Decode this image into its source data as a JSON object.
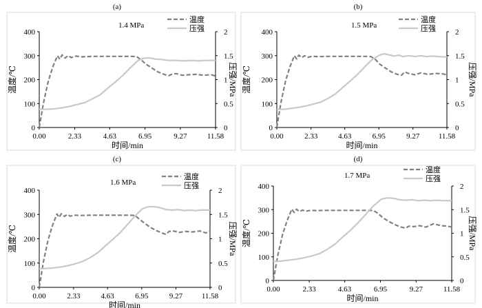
{
  "panel_labels": [
    "(a)",
    "(b)",
    "(c)",
    "(d)"
  ],
  "chart_data": [
    {
      "type": "line",
      "panel": "(a)",
      "annotation": "1.4 MPa",
      "xlabel": "时间/min",
      "ylabel": "温度/℃",
      "y2label": "压强/MPa",
      "x_ticks": [
        "0.00",
        "2.33",
        "4.63",
        "6.95",
        "9.27",
        "11.58"
      ],
      "xlim": [
        0,
        11.58
      ],
      "ylim": [
        0,
        400
      ],
      "y_ticks": [
        "0",
        "100",
        "200",
        "300",
        "400"
      ],
      "y2lim": [
        0,
        2
      ],
      "y2_ticks": [
        "0",
        "0.5",
        "1",
        "1.5",
        "2"
      ],
      "legend_position": "top-right",
      "grid": false,
      "series": [
        {
          "name": "温度",
          "axis": "left",
          "style": "dashed",
          "color": "#808080",
          "x": [
            0,
            0.3,
            0.6,
            0.9,
            1.2,
            1.35,
            1.5,
            1.7,
            1.9,
            2.1,
            2.4,
            2.8,
            3.5,
            4.5,
            5.5,
            6.1,
            6.4,
            6.7,
            7.0,
            7.4,
            7.8,
            8.2,
            8.5,
            8.7,
            9.0,
            9.4,
            9.8,
            10.3,
            10.8,
            11.3,
            11.58
          ],
          "values": [
            0,
            110,
            195,
            255,
            300,
            285,
            303,
            290,
            300,
            292,
            298,
            295,
            297,
            297,
            297,
            297,
            296,
            282,
            265,
            248,
            232,
            222,
            216,
            222,
            225,
            218,
            220,
            222,
            218,
            220,
            215
          ]
        },
        {
          "name": "压强",
          "axis": "right",
          "style": "solid",
          "color": "#c8c8c8",
          "x": [
            0,
            0.5,
            1,
            1.5,
            2,
            2.5,
            3,
            3.5,
            4,
            4.5,
            5,
            5.5,
            6,
            6.5,
            6.8,
            7.0,
            7.3,
            7.6,
            8.0,
            8.5,
            9.0,
            9.5,
            10,
            10.5,
            11,
            11.58
          ],
          "values": [
            0.38,
            0.38,
            0.39,
            0.41,
            0.44,
            0.48,
            0.52,
            0.6,
            0.68,
            0.82,
            0.95,
            1.09,
            1.25,
            1.4,
            1.44,
            1.45,
            1.45,
            1.43,
            1.42,
            1.4,
            1.4,
            1.39,
            1.4,
            1.39,
            1.4,
            1.4
          ]
        }
      ]
    },
    {
      "type": "line",
      "panel": "(b)",
      "annotation": "1.5 MPa",
      "xlabel": "时间/min",
      "ylabel": "温度/℃",
      "y2label": "压强/MPa",
      "x_ticks": [
        "0.00",
        "2.33",
        "4.63",
        "6.95",
        "9.27",
        "11.58"
      ],
      "xlim": [
        0,
        11.58
      ],
      "ylim": [
        0,
        400
      ],
      "y_ticks": [
        "0",
        "100",
        "200",
        "300",
        "400"
      ],
      "y2lim": [
        0,
        2
      ],
      "y2_ticks": [
        "0",
        "0.5",
        "1",
        "1.5",
        "2"
      ],
      "legend_position": "top-right",
      "grid": false,
      "series": [
        {
          "name": "温度",
          "axis": "left",
          "style": "dashed",
          "color": "#808080",
          "x": [
            0,
            0.3,
            0.6,
            0.9,
            1.2,
            1.35,
            1.5,
            1.7,
            1.9,
            2.1,
            2.4,
            2.8,
            3.5,
            4.5,
            5.5,
            6.1,
            6.4,
            6.7,
            7.0,
            7.4,
            7.8,
            8.2,
            8.5,
            8.7,
            9.0,
            9.4,
            9.8,
            10.3,
            10.8,
            11.3,
            11.58
          ],
          "values": [
            0,
            110,
            195,
            255,
            300,
            286,
            302,
            292,
            300,
            293,
            297,
            296,
            297,
            297,
            297,
            297,
            296,
            285,
            265,
            248,
            232,
            222,
            218,
            232,
            225,
            220,
            228,
            222,
            226,
            224,
            220
          ]
        },
        {
          "name": "压强",
          "axis": "right",
          "style": "solid",
          "color": "#c8c8c8",
          "x": [
            0,
            0.5,
            1,
            1.5,
            2,
            2.5,
            3,
            3.5,
            4,
            4.5,
            5,
            5.5,
            6,
            6.5,
            7.0,
            7.3,
            7.6,
            8.0,
            8.3,
            8.6,
            9.0,
            9.4,
            9.8,
            10.2,
            10.6,
            11.0,
            11.58
          ],
          "values": [
            0.38,
            0.38,
            0.4,
            0.42,
            0.45,
            0.49,
            0.53,
            0.61,
            0.7,
            0.84,
            0.97,
            1.11,
            1.27,
            1.42,
            1.51,
            1.54,
            1.52,
            1.49,
            1.51,
            1.48,
            1.5,
            1.48,
            1.5,
            1.48,
            1.49,
            1.48,
            1.47
          ]
        }
      ]
    },
    {
      "type": "line",
      "panel": "(c)",
      "annotation": "1.6 MPa",
      "xlabel": "时间/min",
      "ylabel": "温度/℃",
      "y2label": "压强/MPa",
      "x_ticks": [
        "0.00",
        "2.33",
        "4.63",
        "6.95",
        "9.27",
        "11.58"
      ],
      "xlim": [
        0,
        11.58
      ],
      "ylim": [
        0,
        400
      ],
      "y_ticks": [
        "0",
        "100",
        "200",
        "300",
        "400"
      ],
      "y2lim": [
        0,
        2
      ],
      "y2_ticks": [
        "0",
        "0.5",
        "1",
        "1.5",
        "2"
      ],
      "legend_position": "top-right",
      "grid": false,
      "series": [
        {
          "name": "温度",
          "axis": "left",
          "style": "dashed",
          "color": "#808080",
          "x": [
            0,
            0.3,
            0.6,
            0.9,
            1.2,
            1.35,
            1.5,
            1.7,
            1.9,
            2.1,
            2.4,
            2.8,
            3.5,
            4.5,
            5.5,
            6.1,
            6.5,
            6.8,
            7.1,
            7.5,
            7.9,
            8.3,
            8.6,
            8.8,
            9.1,
            9.5,
            9.9,
            10.4,
            10.9,
            11.3,
            11.58
          ],
          "values": [
            0,
            110,
            195,
            255,
            302,
            288,
            303,
            292,
            300,
            293,
            297,
            296,
            297,
            297,
            297,
            297,
            296,
            280,
            266,
            248,
            235,
            224,
            218,
            230,
            232,
            226,
            230,
            228,
            232,
            224,
            230
          ]
        },
        {
          "name": "压强",
          "axis": "right",
          "style": "solid",
          "color": "#c8c8c8",
          "x": [
            0,
            0.5,
            1,
            1.5,
            2,
            2.5,
            3,
            3.5,
            4,
            4.5,
            5,
            5.5,
            6,
            6.5,
            7.0,
            7.4,
            7.8,
            8.2,
            8.6,
            9.0,
            9.4,
            9.8,
            10.2,
            10.6,
            11.0,
            11.58
          ],
          "values": [
            0.38,
            0.39,
            0.4,
            0.42,
            0.45,
            0.49,
            0.54,
            0.62,
            0.72,
            0.86,
            0.99,
            1.13,
            1.3,
            1.47,
            1.62,
            1.66,
            1.66,
            1.64,
            1.6,
            1.59,
            1.6,
            1.58,
            1.59,
            1.58,
            1.59,
            1.59
          ]
        }
      ]
    },
    {
      "type": "line",
      "panel": "(d)",
      "annotation": "1.7 MPa",
      "xlabel": "时间/min",
      "ylabel": "温度/℃",
      "y2label": "压强/MPa",
      "x_ticks": [
        "0.00",
        "2.33",
        "4.63",
        "6.95",
        "9.27",
        "11.58"
      ],
      "xlim": [
        0,
        11.58
      ],
      "ylim": [
        0,
        400
      ],
      "y_ticks": [
        "0",
        "100",
        "200",
        "300",
        "400"
      ],
      "y2lim": [
        0,
        2
      ],
      "y2_ticks": [
        "0",
        "0.5",
        "1",
        "1.5",
        "2"
      ],
      "legend_position": "top-right",
      "grid": false,
      "series": [
        {
          "name": "温度",
          "axis": "left",
          "style": "dashed",
          "color": "#808080",
          "x": [
            0,
            0.3,
            0.6,
            0.9,
            1.2,
            1.35,
            1.5,
            1.7,
            1.9,
            2.1,
            2.4,
            2.8,
            3.5,
            4.5,
            5.5,
            6.1,
            6.5,
            6.8,
            7.1,
            7.5,
            7.9,
            8.3,
            8.6,
            8.8,
            9.1,
            9.5,
            9.9,
            10.4,
            10.9,
            11.3,
            11.58
          ],
          "values": [
            0,
            110,
            195,
            255,
            302,
            288,
            302,
            292,
            298,
            293,
            297,
            296,
            297,
            297,
            297,
            297,
            296,
            284,
            266,
            250,
            236,
            226,
            222,
            230,
            228,
            232,
            226,
            240,
            232,
            230,
            226
          ]
        },
        {
          "name": "压强",
          "axis": "right",
          "style": "solid",
          "color": "#c8c8c8",
          "x": [
            0,
            0.5,
            1,
            1.5,
            2,
            2.5,
            3,
            3.5,
            4,
            4.5,
            5,
            5.5,
            6,
            6.5,
            7.0,
            7.4,
            7.8,
            8.2,
            8.6,
            9.0,
            9.4,
            9.8,
            10.2,
            10.6,
            11.0,
            11.58
          ],
          "values": [
            0.4,
            0.41,
            0.43,
            0.45,
            0.48,
            0.52,
            0.57,
            0.66,
            0.77,
            0.92,
            1.06,
            1.22,
            1.4,
            1.58,
            1.72,
            1.75,
            1.74,
            1.71,
            1.7,
            1.71,
            1.69,
            1.7,
            1.69,
            1.7,
            1.69,
            1.69
          ]
        }
      ]
    }
  ]
}
